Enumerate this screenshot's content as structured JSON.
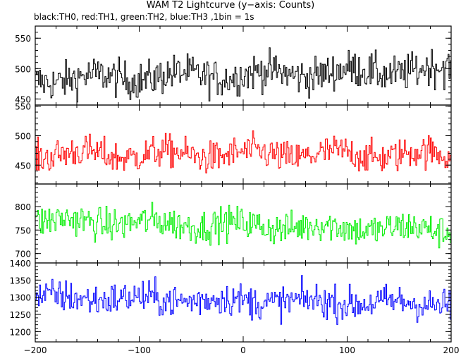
{
  "title": "WAM T2 Lightcurve (y−axis: Counts)",
  "subtitle": "black:TH0, red:TH1, green:TH2, blue:TH3 ,1bin = 1s",
  "chart_data": {
    "type": "line",
    "x_range": [
      -200,
      200
    ],
    "x_ticks": [
      "−200",
      "−100",
      "0",
      "100",
      "200"
    ],
    "x_tick_values": [
      -200,
      -100,
      0,
      100,
      200
    ],
    "panels": [
      {
        "series": "TH0",
        "color": "#000000",
        "ylim": [
          440,
          570
        ],
        "y_ticks": [
          "450",
          "500",
          "550"
        ],
        "y_tick_values": [
          450,
          500,
          550
        ],
        "mean": 490,
        "spread": 22,
        "trend": 0.04
      },
      {
        "series": "TH1",
        "color": "#ff0000",
        "ylim": [
          418,
          552
        ],
        "y_ticks": [
          "450",
          "500",
          "550"
        ],
        "y_tick_values": [
          450,
          500,
          550
        ],
        "mean": 468,
        "spread": 20,
        "trend": 0.0
      },
      {
        "series": "TH2",
        "color": "#00ee00",
        "ylim": [
          680,
          848
        ],
        "y_ticks": [
          "700",
          "750",
          "800"
        ],
        "y_tick_values": [
          700,
          750,
          800
        ],
        "mean": 760,
        "spread": 25,
        "trend": -0.05
      },
      {
        "series": "TH3",
        "color": "#0000ff",
        "ylim": [
          1170,
          1400
        ],
        "y_ticks": [
          "1200",
          "1250",
          "1300",
          "1350",
          "1400"
        ],
        "y_tick_values": [
          1200,
          1250,
          1300,
          1350,
          1400
        ],
        "mean": 1290,
        "spread": 35,
        "trend": -0.05
      }
    ],
    "grid": false,
    "legend": "none"
  }
}
